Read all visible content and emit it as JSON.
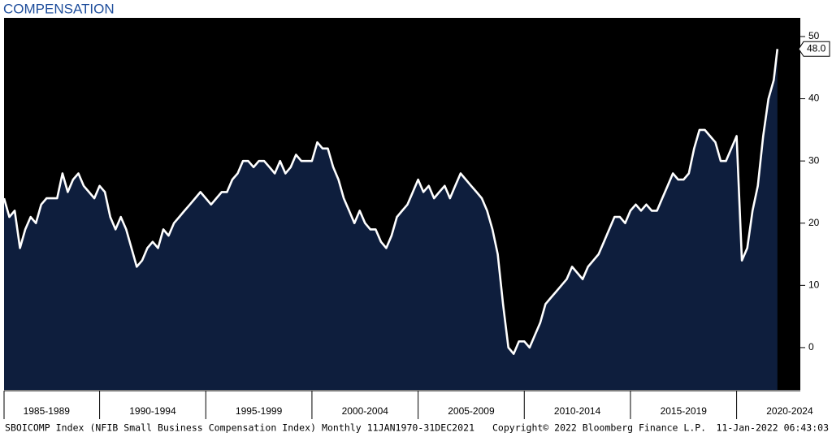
{
  "chart_data": {
    "type": "area",
    "title": "COMPENSATION",
    "series": [
      {
        "name": "SBOICOMP Index",
        "color": "#ffffff",
        "fill": "#0e1e3d",
        "x": [
          1985.5,
          1985.75,
          1986,
          1986.25,
          1986.5,
          1986.75,
          1987,
          1987.25,
          1987.5,
          1987.75,
          1988,
          1988.25,
          1988.5,
          1988.75,
          1989,
          1989.25,
          1989.5,
          1989.75,
          1990,
          1990.25,
          1990.5,
          1990.75,
          1991,
          1991.25,
          1991.5,
          1991.75,
          1992,
          1992.25,
          1992.5,
          1992.75,
          1993,
          1993.25,
          1993.5,
          1993.75,
          1994,
          1994.25,
          1994.5,
          1994.75,
          1995,
          1995.25,
          1995.5,
          1995.75,
          1996,
          1996.25,
          1996.5,
          1996.75,
          1997,
          1997.25,
          1997.5,
          1997.75,
          1998,
          1998.25,
          1998.5,
          1998.75,
          1999,
          1999.25,
          1999.5,
          1999.75,
          2000,
          2000.25,
          2000.5,
          2000.75,
          2001,
          2001.25,
          2001.5,
          2001.75,
          2002,
          2002.25,
          2002.5,
          2002.75,
          2003,
          2003.25,
          2003.5,
          2003.75,
          2004,
          2004.25,
          2004.5,
          2004.75,
          2005,
          2005.25,
          2005.5,
          2005.75,
          2006,
          2006.25,
          2006.5,
          2006.75,
          2007,
          2007.25,
          2007.5,
          2007.75,
          2008,
          2008.25,
          2008.5,
          2008.75,
          2009,
          2009.25,
          2009.5,
          2009.75,
          2010,
          2010.25,
          2010.5,
          2010.75,
          2011,
          2011.25,
          2011.5,
          2011.75,
          2012,
          2012.25,
          2012.5,
          2012.75,
          2013,
          2013.25,
          2013.5,
          2013.75,
          2014,
          2014.25,
          2014.5,
          2014.75,
          2015,
          2015.25,
          2015.5,
          2015.75,
          2016,
          2016.25,
          2016.5,
          2016.75,
          2017,
          2017.25,
          2017.5,
          2017.75,
          2018,
          2018.25,
          2018.5,
          2018.75,
          2019,
          2019.25,
          2019.5,
          2019.75,
          2020,
          2020.25,
          2020.5,
          2020.75,
          2021,
          2021.25,
          2021.5,
          2021.75,
          2021.92
        ],
        "values": [
          24,
          21,
          22,
          16,
          19,
          21,
          20,
          23,
          24,
          24,
          24,
          28,
          25,
          27,
          28,
          26,
          25,
          24,
          26,
          25,
          21,
          19,
          21,
          19,
          16,
          13,
          14,
          16,
          17,
          16,
          19,
          18,
          20,
          21,
          22,
          23,
          24,
          25,
          24,
          23,
          24,
          25,
          25,
          27,
          28,
          30,
          30,
          29,
          30,
          30,
          29,
          28,
          30,
          28,
          29,
          31,
          30,
          30,
          30,
          33,
          32,
          32,
          29,
          27,
          24,
          22,
          20,
          22,
          20,
          19,
          19,
          17,
          16,
          18,
          21,
          22,
          23,
          25,
          27,
          25,
          26,
          24,
          25,
          26,
          24,
          26,
          28,
          27,
          26,
          25,
          24,
          22,
          19,
          15,
          7,
          0,
          -1,
          1,
          1,
          0,
          2,
          4,
          7,
          8,
          9,
          10,
          11,
          13,
          12,
          11,
          13,
          14,
          15,
          17,
          19,
          21,
          21,
          20,
          22,
          23,
          22,
          23,
          22,
          22,
          24,
          26,
          28,
          27,
          27,
          28,
          32,
          35,
          35,
          34,
          33,
          30,
          30,
          32,
          34,
          14,
          16,
          22,
          26,
          34,
          40,
          43,
          48
        ]
      }
    ],
    "last_value_label": "48.0",
    "xlim": [
      1985.5,
      2023
    ],
    "xticks": [
      {
        "value": 1985,
        "label": "1985-1989"
      },
      {
        "value": 1990,
        "label": "1990-1994"
      },
      {
        "value": 1995,
        "label": "1995-1999"
      },
      {
        "value": 2000,
        "label": "2000-2004"
      },
      {
        "value": 2005,
        "label": "2005-2009"
      },
      {
        "value": 2010,
        "label": "2010-2014"
      },
      {
        "value": 2015,
        "label": "2015-2019"
      },
      {
        "value": 2020,
        "label": "2020-2024"
      }
    ],
    "ylim": [
      -6.8,
      53
    ],
    "yticks": [
      0,
      10,
      20,
      30,
      40,
      50
    ],
    "y_axis_side": "right",
    "footer": [
      "SBOICOMP Index (NFIB Small Business Compensation Index)  Monthly 11JAN1970-31DEC2021",
      "Copyright© 2022 Bloomberg Finance L.P.",
      "11-Jan-2022 06:43:03"
    ]
  }
}
